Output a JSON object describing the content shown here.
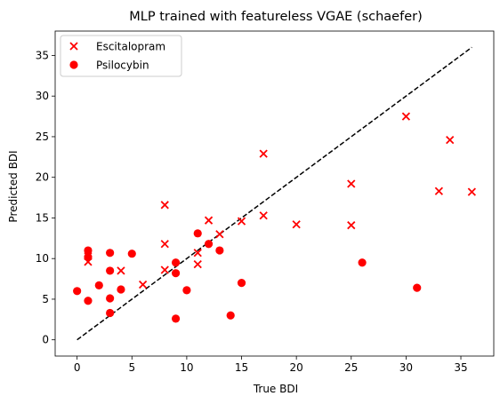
{
  "chart_data": {
    "type": "scatter",
    "title": "MLP trained with featureless VGAE (schaefer)",
    "xlabel": "True BDI",
    "ylabel": "Predicted BDI",
    "xlim": [
      -2,
      38
    ],
    "ylim": [
      -2,
      38
    ],
    "xticks": [
      "0",
      "5",
      "10",
      "15",
      "20",
      "25",
      "30",
      "35"
    ],
    "yticks": [
      "0",
      "5",
      "10",
      "15",
      "20",
      "25",
      "30",
      "35"
    ],
    "grid": false,
    "legend_position": "top-left",
    "reference_line": {
      "style": "dashed",
      "color": "#000000",
      "from": [
        0,
        0
      ],
      "to": [
        36,
        36
      ]
    },
    "series": [
      {
        "name": "Escitalopram",
        "marker": "x",
        "color": "#ff0000",
        "points": [
          [
            1,
            9.6
          ],
          [
            1,
            10.3
          ],
          [
            4,
            8.5
          ],
          [
            6,
            6.8
          ],
          [
            8,
            16.6
          ],
          [
            8,
            11.8
          ],
          [
            8,
            8.6
          ],
          [
            11,
            9.3
          ],
          [
            11,
            10.7
          ],
          [
            12,
            14.7
          ],
          [
            13,
            13.0
          ],
          [
            15,
            14.6
          ],
          [
            17,
            22.9
          ],
          [
            17,
            15.3
          ],
          [
            20,
            14.2
          ],
          [
            25,
            19.2
          ],
          [
            25,
            14.1
          ],
          [
            30,
            27.5
          ],
          [
            33,
            18.3
          ],
          [
            34,
            24.6
          ],
          [
            36,
            18.2
          ]
        ]
      },
      {
        "name": "Psilocybin",
        "marker": "o",
        "color": "#ff0000",
        "points": [
          [
            0,
            6.0
          ],
          [
            1,
            11.0
          ],
          [
            1,
            10.2
          ],
          [
            1,
            4.8
          ],
          [
            2,
            6.7
          ],
          [
            3,
            10.7
          ],
          [
            3,
            8.5
          ],
          [
            3,
            5.1
          ],
          [
            3,
            3.3
          ],
          [
            4,
            6.2
          ],
          [
            5,
            10.6
          ],
          [
            9,
            9.5
          ],
          [
            9,
            8.2
          ],
          [
            9,
            2.6
          ],
          [
            10,
            6.1
          ],
          [
            11,
            13.1
          ],
          [
            12,
            11.8
          ],
          [
            13,
            11.0
          ],
          [
            14,
            3.0
          ],
          [
            15,
            7.0
          ],
          [
            26,
            9.5
          ],
          [
            31,
            6.4
          ]
        ]
      }
    ]
  }
}
